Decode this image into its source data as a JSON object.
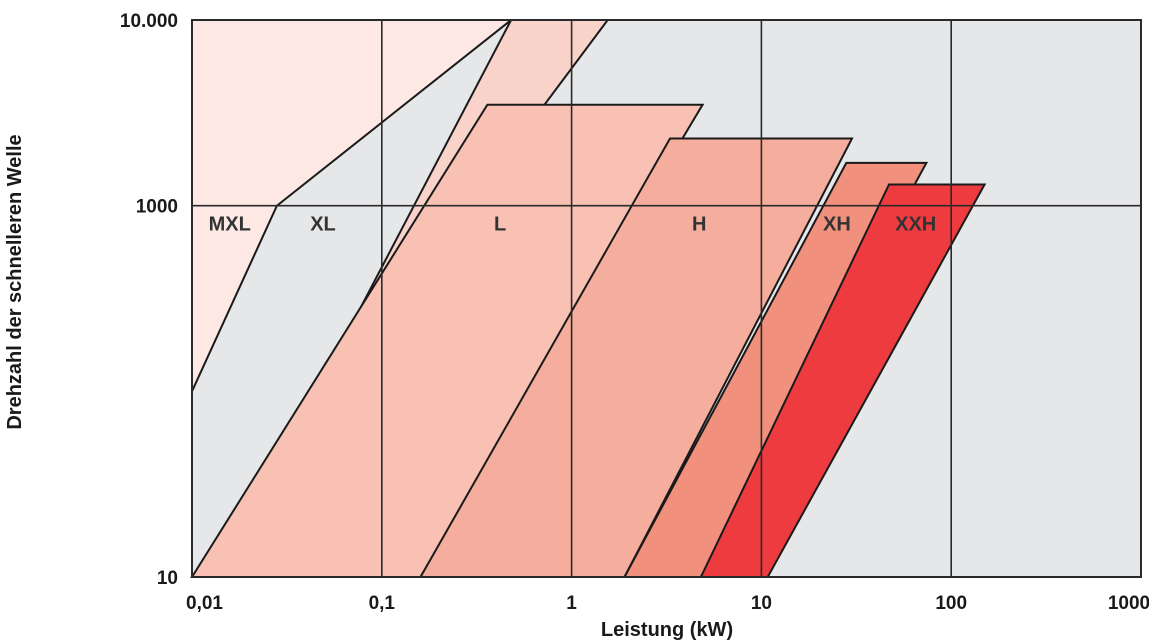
{
  "chart_data": {
    "type": "area",
    "xlabel": "Leistung (kW)",
    "ylabel": "Drehzahl der schnelleren Welle",
    "x_scale": "log",
    "y_scale": "log",
    "xlim": [
      0.01,
      1000
    ],
    "ylim": [
      10,
      10000
    ],
    "x_ticks": [
      "0,01",
      "0,1",
      "1",
      "10",
      "100",
      "1000"
    ],
    "y_ticks": [
      "10",
      "1000",
      "10.000"
    ],
    "background_color": "#e6e7e9",
    "grid": true,
    "regions": [
      {
        "label": "MXL",
        "color": "#fde8e3",
        "polygon": [
          [
            0.01,
            10000
          ],
          [
            0.48,
            10000
          ],
          [
            0.028,
            1000
          ],
          [
            0.01,
            100
          ]
        ]
      },
      {
        "label": "XL",
        "color": "#f9d3ca",
        "polygon": [
          [
            0.48,
            10000
          ],
          [
            1.55,
            10000
          ],
          [
            0.01,
            10
          ],
          [
            0.014,
            10
          ]
        ]
      },
      {
        "label": "L",
        "color": "#f8c1b4",
        "polygon": [
          [
            0.36,
            3500
          ],
          [
            4.9,
            3500
          ],
          [
            0.16,
            10
          ],
          [
            0.01,
            10
          ]
        ]
      },
      {
        "label": "H",
        "color": "#f5ae9d",
        "polygon": [
          [
            3.3,
            2300
          ],
          [
            30,
            2300
          ],
          [
            1.9,
            10
          ],
          [
            0.16,
            10
          ]
        ]
      },
      {
        "label": "XH",
        "color": "#f0907d",
        "polygon": [
          [
            28,
            1700
          ],
          [
            74,
            1700
          ],
          [
            4.8,
            10
          ],
          [
            1.9,
            10
          ]
        ]
      },
      {
        "label": "XXH",
        "color": "#ee3b40",
        "polygon": [
          [
            47,
            1300
          ],
          [
            150,
            1300
          ],
          [
            10.8,
            10
          ],
          [
            4.8,
            10
          ]
        ]
      }
    ],
    "region_labels": [
      {
        "text": "MXL",
        "x": 0.0158,
        "y": 800
      },
      {
        "text": "XL",
        "x": 0.049,
        "y": 800
      },
      {
        "text": "L",
        "x": 0.42,
        "y": 800
      },
      {
        "text": "H",
        "x": 4.7,
        "y": 800
      },
      {
        "text": "XH",
        "x": 25,
        "y": 800
      },
      {
        "text": "XXH",
        "x": 65,
        "y": 800
      }
    ]
  }
}
